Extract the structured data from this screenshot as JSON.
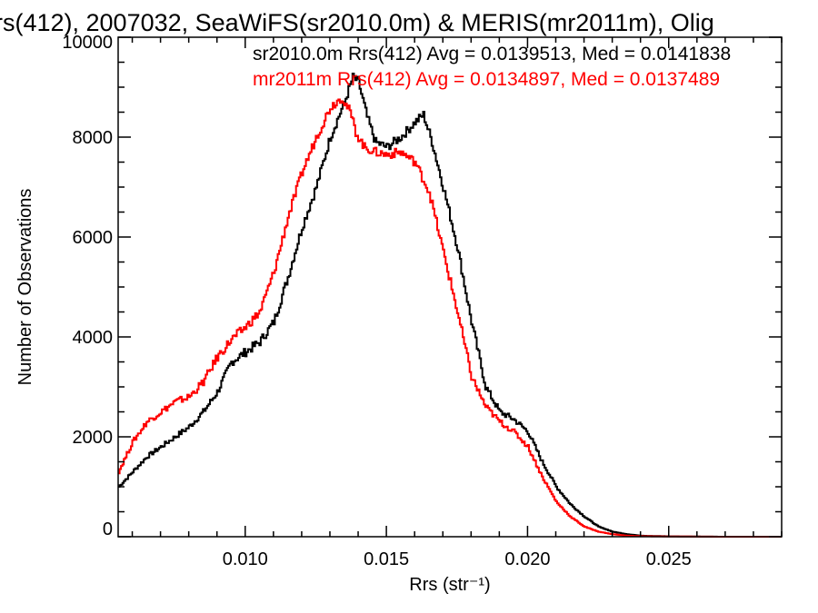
{
  "chart_data": {
    "type": "line",
    "title": "rs(412), 2007032, SeaWiFS(sr2010.0m) & MERIS(mr2011m), Olig",
    "xlabel": "Rrs (str⁻¹)",
    "ylabel": "Number of Observations",
    "xlim": [
      0.0055,
      0.029
    ],
    "ylim": [
      0,
      10000
    ],
    "xticks": [
      "0.010",
      "0.015",
      "0.020",
      "0.025"
    ],
    "xtick_values": [
      0.01,
      0.015,
      0.02,
      0.025
    ],
    "yticks": [
      "0",
      "2000",
      "4000",
      "6000",
      "8000",
      "10000"
    ],
    "ytick_values": [
      0,
      2000,
      4000,
      6000,
      8000,
      10000
    ],
    "grid": false,
    "legend_position": "top-right",
    "series": [
      {
        "name": "sr2010.0m Rrs(412) Avg = 0.0139513, Med = 0.0141838",
        "color": "#000000",
        "x": [
          0.0055,
          0.006,
          0.0065,
          0.007,
          0.0075,
          0.008,
          0.0085,
          0.009,
          0.0095,
          0.01,
          0.0105,
          0.011,
          0.0115,
          0.012,
          0.0125,
          0.013,
          0.0135,
          0.0138,
          0.014,
          0.0143,
          0.0146,
          0.015,
          0.0155,
          0.016,
          0.0163,
          0.0166,
          0.017,
          0.0175,
          0.018,
          0.0185,
          0.019,
          0.0195,
          0.02,
          0.0205,
          0.021,
          0.0215,
          0.022,
          0.0225,
          0.023,
          0.0235,
          0.024,
          0.025,
          0.026,
          0.027,
          0.029
        ],
        "y": [
          1000,
          1300,
          1600,
          1800,
          2000,
          2200,
          2500,
          2900,
          3500,
          3700,
          3900,
          4300,
          5200,
          6200,
          7000,
          8000,
          8700,
          9200,
          9100,
          8400,
          7900,
          7800,
          8000,
          8300,
          8450,
          7900,
          7000,
          5800,
          4300,
          3000,
          2500,
          2350,
          2100,
          1500,
          1000,
          650,
          400,
          200,
          100,
          50,
          20,
          8,
          3,
          0,
          0
        ]
      },
      {
        "name": "mr2011m Rrs(412) Avg = 0.0134897, Med = 0.0137489",
        "color": "#ff0000",
        "x": [
          0.0055,
          0.006,
          0.0065,
          0.007,
          0.0075,
          0.008,
          0.0085,
          0.009,
          0.0095,
          0.01,
          0.0105,
          0.011,
          0.0115,
          0.012,
          0.0125,
          0.013,
          0.0134,
          0.0137,
          0.0139,
          0.0142,
          0.0146,
          0.015,
          0.0155,
          0.016,
          0.0165,
          0.017,
          0.0175,
          0.018,
          0.0185,
          0.019,
          0.0195,
          0.02,
          0.0205,
          0.021,
          0.0215,
          0.022,
          0.0225,
          0.023,
          0.0235,
          0.024,
          0.025,
          0.026,
          0.027,
          0.029
        ],
        "y": [
          1300,
          1900,
          2300,
          2500,
          2700,
          2800,
          3100,
          3600,
          3950,
          4200,
          4500,
          5300,
          6400,
          7300,
          8000,
          8600,
          8800,
          8500,
          8100,
          7800,
          7700,
          7650,
          7700,
          7500,
          6900,
          5700,
          4500,
          3200,
          2600,
          2300,
          2100,
          1800,
          1200,
          700,
          400,
          200,
          100,
          50,
          20,
          10,
          5,
          2,
          0,
          0
        ]
      }
    ]
  }
}
